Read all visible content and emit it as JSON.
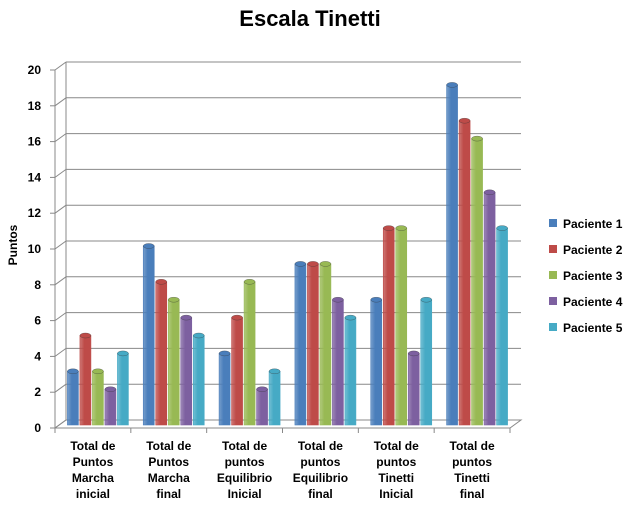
{
  "chart_data": {
    "type": "bar3d",
    "title": "Escala Tinetti",
    "y_label": "Puntos",
    "categories": [
      "Total de\nPuntos\nMarcha\ninicial",
      "Total de\nPuntos\nMarcha\nfinal",
      "Total de\npuntos\nEquilibrio\nInicial",
      "Total de\npuntos\nEquilibrio\nfinal",
      "Total de\npuntos\nTinetti\nInicial",
      "Total de\npuntos\nTinetti\nfinal"
    ],
    "series": [
      {
        "name": "Paciente 1",
        "color": "#4a7ebb",
        "values": [
          3,
          10,
          4,
          9,
          7,
          19
        ]
      },
      {
        "name": "Paciente 2",
        "color": "#be4b48",
        "values": [
          5,
          8,
          6,
          9,
          11,
          17
        ]
      },
      {
        "name": "Paciente 3",
        "color": "#98b954",
        "values": [
          3,
          7,
          8,
          9,
          11,
          16
        ]
      },
      {
        "name": "Paciente 4",
        "color": "#7d60a0",
        "values": [
          2,
          6,
          2,
          7,
          4,
          13
        ]
      },
      {
        "name": "Paciente 5",
        "color": "#46aac5",
        "values": [
          4,
          5,
          3,
          6,
          7,
          11
        ]
      }
    ],
    "ylim": [
      0,
      20
    ],
    "yticks": [
      0,
      2,
      4,
      6,
      8,
      10,
      12,
      14,
      16,
      18,
      20
    ],
    "grid": true,
    "legend": "right"
  }
}
